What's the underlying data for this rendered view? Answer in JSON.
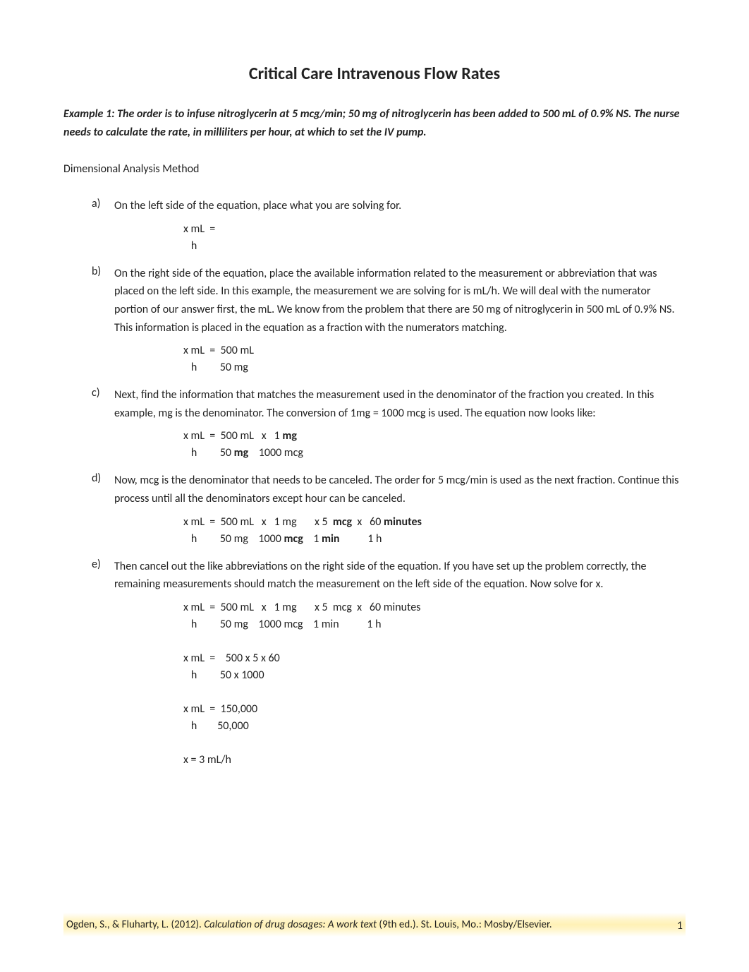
{
  "title": "Critical Care Intravenous Flow Rates",
  "example_intro": "Example 1: The order is to infuse nitroglycerin at 5 mcg/min; 50 mg of nitroglycerin has been added to 500 mL of 0.9% NS. The nurse needs to calculate the rate, in milliliters per hour, at which to set the IV pump.",
  "method_label": "Dimensional Analysis Method",
  "items": [
    {
      "marker": "a)",
      "text": "On the left side of the equation, place what you are solving for.",
      "equation": "x mL  =\n   h"
    },
    {
      "marker": "b)",
      "text": "On the right side of the equation, place the available information related to the measurement or abbreviation that was placed on the left side. In this example, the measurement we are solving for is mL/h. We will deal with the numerator portion of our answer first, the mL. We know from the problem that there are 50 mg of nitroglycerin in 500 mL of 0.9% NS. This information is placed in the equation as a fraction with the numerators matching.",
      "equation": "x mL  =  500 mL\n   h         50 mg"
    },
    {
      "marker": "c)",
      "text": "Next, find the information that matches the measurement used in the denominator of the fraction you created. In this example, mg is the denominator. The conversion of 1mg = 1000 mcg is used. The equation now looks like:",
      "equation_html": "x mL  =  500 mL   x   1 <b>mg</b>\n   h         50 <b>mg</b>    1000 mcg"
    },
    {
      "marker": "d)",
      "text": "Now, mcg is the denominator that needs to be canceled. The order for 5 mcg/min is used as the next fraction. Continue this process until all the denominators except hour can be canceled.",
      "equation_html": "x mL  =  500 mL   x   1 mg       x 5  <b>mcg</b>  x   60 <b>minutes</b>\n   h         50 mg    1000 <b>mcg</b>    1 <b>min</b>           1 h"
    },
    {
      "marker": "e)",
      "text": "Then cancel out the like abbreviations on the right side of the equation. If you have set up the problem correctly, the remaining measurements should match the measurement on the left side of the equation. Now solve for x.",
      "equation": "x mL  =  500 mL   x   1 mg       x 5  mcg  x   60 minutes\n   h         50 mg    1000 mcg    1 min           1 h\n\nx mL  =    500 x 5 x 60\n   h         50 x 1000\n\nx mL  =  150,000\n   h        50,000\n\nx = 3 mL/h"
    }
  ],
  "citation": {
    "authors": "Ogden, S., & Fluharty, L. (2012). ",
    "title": "Calculation of drug dosages: A work text ",
    "rest": "(9th ed.). St. Louis, Mo.: Mosby/Elsevier."
  },
  "page_number": "1"
}
